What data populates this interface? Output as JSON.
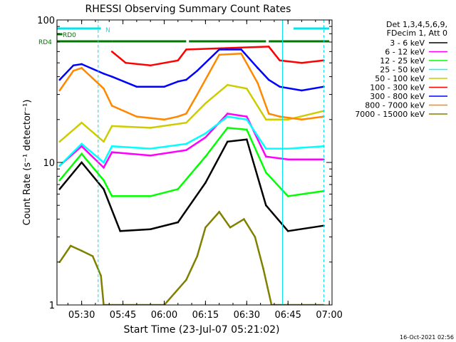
{
  "chart_data": {
    "type": "line",
    "title": "RHESSI Observing Summary Count Rates",
    "xlabel": "Start Time (23-Jul-07 05:21:02)",
    "ylabel": "Count Rate (s⁻¹ detector⁻¹)",
    "y_scale": "log",
    "ylim": [
      1,
      100
    ],
    "xlim": [
      "05:21:02",
      "07:01:00"
    ],
    "x_ticks": [
      "05:30",
      "05:45",
      "06:00",
      "06:15",
      "06:30",
      "06:45",
      "07:00"
    ],
    "y_ticks": [
      "1",
      "10",
      "100"
    ],
    "grid": false,
    "legend_position": "right",
    "legend_header": [
      "Det 1,3,4,5,6,9,",
      "FDecim 1, Att 0"
    ],
    "footer_date": "16-Oct-2021 02:56",
    "flags": [
      {
        "label": "N",
        "color": "#00e5ee",
        "segments": [
          [
            "05:21",
            "05:37"
          ],
          [
            "06:47",
            "07:00"
          ]
        ]
      },
      {
        "label": "RD0",
        "color": "#007700",
        "segments": [
          [
            "05:21",
            "05:23"
          ]
        ]
      },
      {
        "label": "RD4",
        "color": "#007700",
        "segments": [
          [
            "05:21",
            "05:41"
          ],
          [
            "05:41",
            "06:08"
          ],
          [
            "06:09",
            "06:37"
          ],
          [
            "06:38",
            "07:00"
          ]
        ]
      }
    ],
    "vertical_markers": [
      {
        "time": "05:21",
        "color": "#00e5ee",
        "style": "solid"
      },
      {
        "time": "05:36",
        "color": "#00e5ee",
        "style": "dashed"
      },
      {
        "time": "06:43",
        "color": "#00e5ee",
        "style": "solid"
      },
      {
        "time": "06:58",
        "color": "#00e5ee",
        "style": "dashed"
      }
    ],
    "series": [
      {
        "name": "3 - 6 keV",
        "color": "#000000",
        "times": [
          "05:22",
          "05:30",
          "05:38",
          "05:44",
          "05:55",
          "06:05",
          "06:15",
          "06:23",
          "06:30",
          "06:37",
          "06:45",
          "06:58"
        ],
        "values": [
          6.5,
          10,
          6.5,
          3.3,
          3.4,
          3.8,
          7.2,
          14,
          14.5,
          5,
          3.3,
          3.6
        ]
      },
      {
        "name": "6 - 12 keV",
        "color": "#ff00ff",
        "times": [
          "05:22",
          "05:30",
          "05:38",
          "05:41",
          "05:55",
          "06:08",
          "06:15",
          "06:23",
          "06:30",
          "06:37",
          "06:45",
          "06:58"
        ],
        "values": [
          9.5,
          13,
          9.2,
          11.8,
          11.2,
          12.2,
          15,
          22,
          21,
          11,
          10.5,
          10.5
        ]
      },
      {
        "name": "12 - 25 keV",
        "color": "#00ff00",
        "times": [
          "05:22",
          "05:30",
          "05:38",
          "05:41",
          "05:55",
          "06:05",
          "06:15",
          "06:23",
          "06:30",
          "06:37",
          "06:45",
          "06:58"
        ],
        "values": [
          7.5,
          11.5,
          7.5,
          5.8,
          5.8,
          6.5,
          11,
          17.5,
          17,
          8.5,
          5.8,
          6.3
        ]
      },
      {
        "name": "25 - 50 keV",
        "color": "#00ffff",
        "times": [
          "05:22",
          "05:30",
          "05:38",
          "05:41",
          "05:55",
          "06:08",
          "06:15",
          "06:23",
          "06:30",
          "06:37",
          "06:45",
          "06:58"
        ],
        "values": [
          9.5,
          13.5,
          10,
          13,
          12.5,
          13.5,
          16,
          21,
          20,
          12.5,
          12.5,
          13
        ]
      },
      {
        "name": "50 - 100 keV",
        "color": "#cccc00",
        "times": [
          "05:22",
          "05:30",
          "05:38",
          "05:41",
          "05:55",
          "06:08",
          "06:15",
          "06:23",
          "06:30",
          "06:37",
          "06:45",
          "06:58"
        ],
        "values": [
          14,
          19,
          14,
          18,
          17.5,
          19,
          26,
          35,
          33,
          20,
          20,
          23
        ]
      },
      {
        "name": "100 - 300 keV",
        "color": "#ff0000",
        "times": [
          "05:41",
          "05:46",
          "05:55",
          "06:05",
          "06:08",
          "06:38",
          "06:42",
          "06:50",
          "06:58"
        ],
        "values": [
          60,
          50,
          48,
          52,
          62,
          65,
          52,
          50,
          52
        ]
      },
      {
        "name": "300 - 800 keV",
        "color": "#0000ff",
        "times": [
          "05:22",
          "05:27",
          "05:30",
          "05:38",
          "05:41",
          "05:50",
          "06:00",
          "06:05",
          "06:08",
          "06:12",
          "06:20",
          "06:28",
          "06:34",
          "06:38",
          "06:42",
          "06:50",
          "06:58"
        ],
        "values": [
          38,
          48,
          49,
          42,
          40,
          34,
          34,
          37,
          38,
          44,
          62,
          62,
          46,
          38,
          34,
          32,
          34
        ]
      },
      {
        "name": "800 - 7000 keV",
        "color": "#ff8800",
        "times": [
          "05:22",
          "05:27",
          "05:30",
          "05:38",
          "05:41",
          "05:50",
          "06:00",
          "06:05",
          "06:08",
          "06:12",
          "06:20",
          "06:28",
          "06:34",
          "06:38",
          "06:42",
          "06:50",
          "06:58"
        ],
        "values": [
          32,
          44,
          46,
          33,
          25,
          21,
          20,
          21,
          22,
          30,
          57,
          58,
          36,
          22,
          21,
          20,
          21
        ]
      },
      {
        "name": "7000 - 15000 keV",
        "color": "#808000",
        "times": [
          "05:22",
          "05:26",
          "05:30",
          "05:34",
          "05:37",
          "05:38",
          "05:41",
          "05:55",
          "06:00",
          "06:08",
          "06:12",
          "06:15",
          "06:20",
          "06:24",
          "06:29",
          "06:33",
          "06:36",
          "06:39",
          "06:45",
          "06:58"
        ],
        "values": [
          2,
          2.6,
          2.4,
          2.2,
          1.6,
          1,
          1,
          1,
          1,
          1.5,
          2.2,
          3.5,
          4.5,
          3.5,
          4,
          3,
          1.8,
          1,
          1,
          1
        ]
      }
    ]
  }
}
